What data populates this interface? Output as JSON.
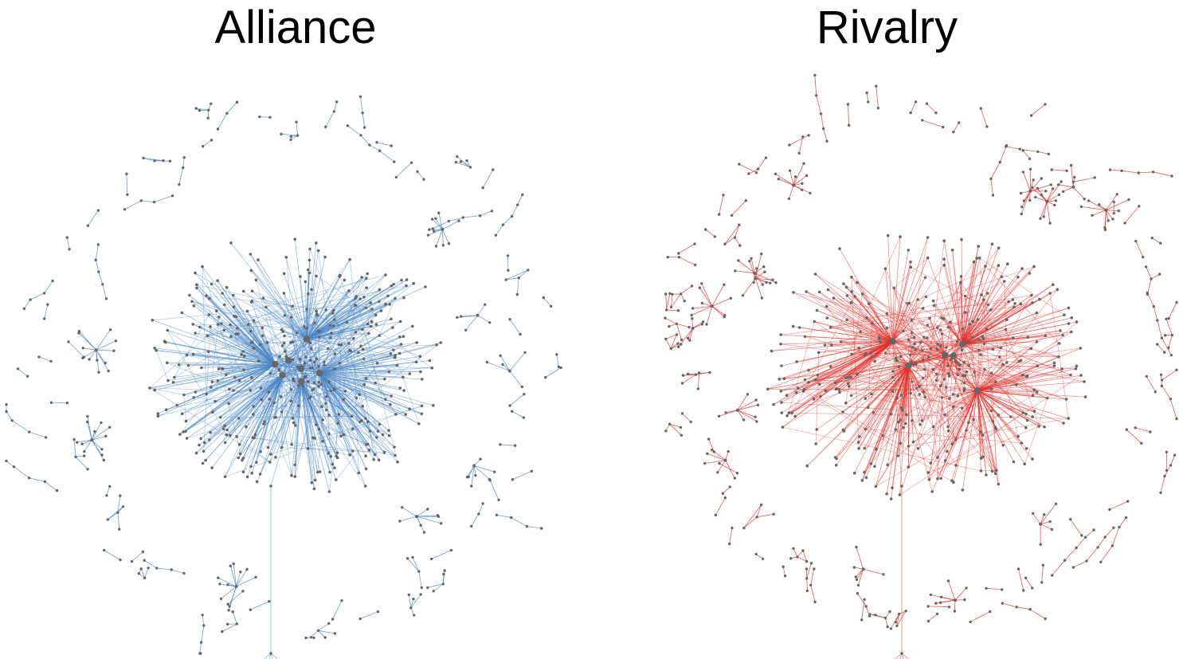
{
  "panels": [
    {
      "id": "alliance",
      "title": "Alliance",
      "edge_color": "#4a86c5",
      "node_color": "#666666",
      "seed": 11,
      "core_node_count": 430,
      "hub_count": 7,
      "peripheral_component_count": 62,
      "peripheral_star_count": 8
    },
    {
      "id": "rivalry",
      "title": "Rivalry",
      "edge_color": "#e0312b",
      "node_color": "#666666",
      "seed": 23,
      "core_node_count": 400,
      "hub_count": 6,
      "peripheral_component_count": 78,
      "peripheral_star_count": 14
    }
  ]
}
